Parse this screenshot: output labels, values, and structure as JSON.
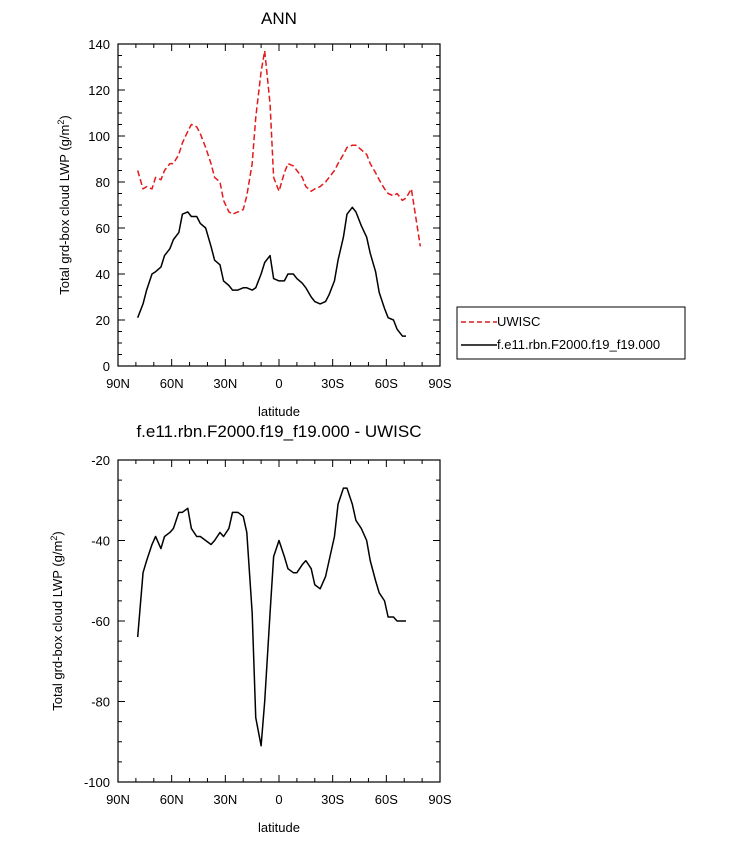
{
  "chart_data": [
    {
      "type": "line",
      "title": "ANN",
      "xlabel": "latitude",
      "ylabel": "Total grd-box cloud LWP (g/m²)",
      "xlim": [
        90,
        -90
      ],
      "ylim": [
        0,
        140
      ],
      "x_ticks": [
        90,
        60,
        30,
        0,
        -30,
        -60,
        -90
      ],
      "x_tick_labels": [
        "90N",
        "60N",
        "30N",
        "0",
        "30S",
        "60S",
        "90S"
      ],
      "y_ticks": [
        0,
        20,
        40,
        60,
        80,
        100,
        120,
        140
      ],
      "y_tick_labels": [
        "0",
        "20",
        "40",
        "60",
        "80",
        "100",
        "120",
        "140"
      ],
      "legend_position": "right",
      "series": [
        {
          "name": "UWISC",
          "style": "dashed",
          "color": "#e31a1c",
          "x": [
            79,
            76,
            74,
            71,
            69,
            66,
            64,
            61,
            59,
            56,
            54,
            51,
            49,
            46,
            44,
            41,
            38,
            36,
            33,
            31,
            28,
            26,
            23,
            20,
            18,
            15,
            13,
            10,
            8,
            5,
            3,
            0,
            -3,
            -5,
            -8,
            -10,
            -13,
            -15,
            -18,
            -20,
            -23,
            -26,
            -28,
            -31,
            -33,
            -36,
            -38,
            -41,
            -43,
            -46,
            -49,
            -51,
            -54,
            -56,
            -59,
            -61,
            -64,
            -66,
            -69,
            -71,
            -74,
            -77,
            -79
          ],
          "y": [
            85,
            77,
            78,
            77,
            82,
            81,
            85,
            88,
            88,
            92,
            97,
            102,
            105,
            104,
            101,
            95,
            88,
            82,
            80,
            72,
            67,
            66,
            67,
            68,
            74,
            88,
            108,
            128,
            137,
            114,
            82,
            76,
            84,
            88,
            87,
            85,
            82,
            78,
            76,
            77,
            78,
            80,
            82,
            85,
            88,
            92,
            95,
            96,
            96,
            94,
            92,
            88,
            84,
            81,
            77,
            75,
            74,
            75,
            72,
            73,
            77,
            62,
            52
          ]
        },
        {
          "name": "f.e11.rbn.F2000.f19_f19.000",
          "style": "solid",
          "color": "#000000",
          "x": [
            79,
            76,
            74,
            71,
            69,
            66,
            64,
            61,
            59,
            56,
            54,
            51,
            49,
            46,
            44,
            41,
            38,
            36,
            33,
            31,
            28,
            26,
            23,
            20,
            18,
            15,
            13,
            10,
            8,
            5,
            3,
            0,
            -3,
            -5,
            -8,
            -10,
            -13,
            -15,
            -18,
            -20,
            -23,
            -26,
            -28,
            -31,
            -33,
            -36,
            -38,
            -41,
            -43,
            -46,
            -49,
            -51,
            -54,
            -56,
            -59,
            -61,
            -64,
            -66,
            -69,
            -71
          ],
          "y": [
            21,
            27,
            33,
            40,
            41,
            43,
            48,
            51,
            55,
            58,
            66,
            67,
            65,
            65,
            62,
            60,
            52,
            46,
            44,
            37,
            35,
            33,
            33,
            34,
            34,
            33,
            34,
            40,
            45,
            48,
            38,
            37,
            37,
            40,
            40,
            38,
            36,
            34,
            30,
            28,
            27,
            28,
            31,
            37,
            46,
            56,
            66,
            69,
            67,
            61,
            56,
            49,
            41,
            32,
            25,
            21,
            20,
            16,
            13,
            13
          ]
        }
      ]
    },
    {
      "type": "line",
      "title": "f.e11.rbn.F2000.f19_f19.000 - UWISC",
      "xlabel": "latitude",
      "ylabel": "Total grd-box cloud LWP (g/m²)",
      "xlim": [
        90,
        -90
      ],
      "ylim": [
        -100,
        -20
      ],
      "x_ticks": [
        90,
        60,
        30,
        0,
        -30,
        -60,
        -90
      ],
      "x_tick_labels": [
        "90N",
        "60N",
        "30N",
        "0",
        "30S",
        "60S",
        "90S"
      ],
      "y_ticks": [
        -100,
        -80,
        -60,
        -40,
        -20
      ],
      "y_tick_labels": [
        "-100",
        "-80",
        "-60",
        "-40",
        "-20"
      ],
      "series": [
        {
          "name": "f.e11.rbn.F2000.f19_f19.000 - UWISC",
          "style": "solid",
          "color": "#000000",
          "x": [
            79,
            76,
            74,
            71,
            69,
            66,
            64,
            61,
            59,
            56,
            54,
            51,
            49,
            46,
            44,
            41,
            38,
            36,
            33,
            31,
            28,
            26,
            23,
            20,
            18,
            15,
            13,
            10,
            8,
            5,
            3,
            0,
            -3,
            -5,
            -8,
            -10,
            -13,
            -15,
            -18,
            -20,
            -23,
            -26,
            -28,
            -31,
            -33,
            -36,
            -38,
            -41,
            -43,
            -46,
            -49,
            -51,
            -54,
            -56,
            -59,
            -61,
            -64,
            -66,
            -69,
            -71
          ],
          "y": [
            -64,
            -48,
            -45,
            -41,
            -39,
            -42,
            -39,
            -38,
            -37,
            -33,
            -33,
            -32,
            -37,
            -39,
            -39,
            -40,
            -41,
            -40,
            -38,
            -39,
            -37,
            -33,
            -33,
            -34,
            -38,
            -58,
            -84,
            -91,
            -80,
            -58,
            -44,
            -40,
            -44,
            -47,
            -48,
            -48,
            -46,
            -45,
            -47,
            -51,
            -52,
            -49,
            -45,
            -39,
            -31,
            -27,
            -27,
            -31,
            -35,
            -37,
            -40,
            -45,
            -50,
            -53,
            -55,
            -59,
            -59,
            -60,
            -60,
            -60
          ]
        }
      ]
    }
  ]
}
